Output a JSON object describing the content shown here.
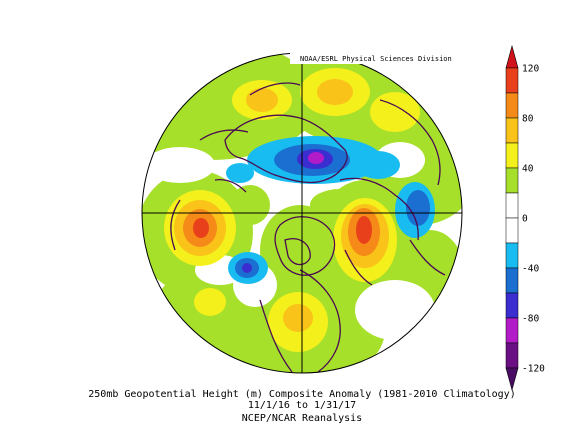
{
  "credit": "NOAA/ESRL Physical Sciences Division",
  "caption": {
    "line1": "250mb Geopotential Height (m) Composite Anomaly (1981-2010 Climatology)",
    "line2": "11/1/16  to 1/31/17",
    "line3": "NCEP/NCAR Reanalysis"
  },
  "colorbar": {
    "min": -120,
    "max": 120,
    "labels": [
      "120",
      "80",
      "40",
      "0",
      "-40",
      "-80",
      "-120"
    ],
    "label_values": [
      120,
      80,
      40,
      0,
      -40,
      -80,
      -120
    ],
    "bins": [
      {
        "from": 100,
        "to": 120,
        "color": "#e8401a"
      },
      {
        "from": 80,
        "to": 100,
        "color": "#f58a18"
      },
      {
        "from": 60,
        "to": 80,
        "color": "#f9c31a"
      },
      {
        "from": 40,
        "to": 60,
        "color": "#f4f01c"
      },
      {
        "from": 20,
        "to": 40,
        "color": "#a7e02a"
      },
      {
        "from": 0,
        "to": 20,
        "color": "#ffffff"
      },
      {
        "from": -20,
        "to": 0,
        "color": "#ffffff"
      },
      {
        "from": -40,
        "to": -20,
        "color": "#18bcf0"
      },
      {
        "from": -60,
        "to": -40,
        "color": "#1a6fd1"
      },
      {
        "from": -80,
        "to": -60,
        "color": "#3a2ed0"
      },
      {
        "from": -100,
        "to": -80,
        "color": "#b21cc8"
      },
      {
        "from": -120,
        "to": -100,
        "color": "#6a0f84"
      }
    ],
    "top_arrow_color": "#d2121a",
    "bottom_arrow_color": "#4a0b63"
  },
  "colors": {
    "background": "#ffffff",
    "positive_low": "#a7e02a",
    "positive_mid": "#f4f01c",
    "positive_high": "#f9c31a",
    "positive_strong": "#f58a18",
    "positive_extreme": "#e8401a",
    "negative_low": "#18bcf0",
    "negative_mid": "#1a6fd1",
    "negative_high": "#3a2ed0",
    "negative_extreme": "#b21cc8",
    "coast": "#4b0a52"
  }
}
